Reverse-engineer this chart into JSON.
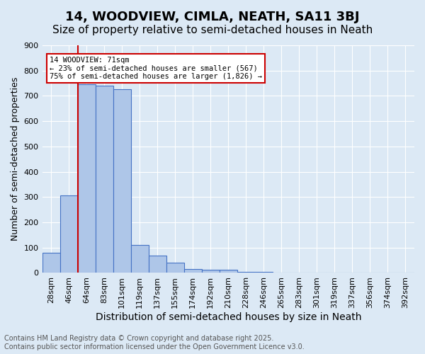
{
  "title": "14, WOODVIEW, CIMLA, NEATH, SA11 3BJ",
  "subtitle": "Size of property relative to semi-detached houses in Neath",
  "xlabel": "Distribution of semi-detached houses by size in Neath",
  "ylabel": "Number of semi-detached properties",
  "bin_labels": [
    "28sqm",
    "46sqm",
    "64sqm",
    "83sqm",
    "101sqm",
    "119sqm",
    "137sqm",
    "155sqm",
    "174sqm",
    "192sqm",
    "210sqm",
    "228sqm",
    "246sqm",
    "265sqm",
    "283sqm",
    "301sqm",
    "319sqm",
    "337sqm",
    "356sqm",
    "374sqm",
    "392sqm"
  ],
  "bar_heights": [
    80,
    307,
    745,
    740,
    727,
    110,
    68,
    40,
    15,
    13,
    13,
    5,
    3,
    0,
    0,
    0,
    0,
    0,
    0,
    0,
    0
  ],
  "bar_color": "#aec6e8",
  "bar_edge_color": "#4472c4",
  "property_line_label": "14 WOODVIEW: 71sqm",
  "annotation_line1": "← 23% of semi-detached houses are smaller (567)",
  "annotation_line2": "75% of semi-detached houses are larger (1,826) →",
  "legend_box_color": "#cc0000",
  "vline_color": "#cc0000",
  "background_color": "#dce9f5",
  "plot_bg_color": "#dce9f5",
  "footer_line1": "Contains HM Land Registry data © Crown copyright and database right 2025.",
  "footer_line2": "Contains public sector information licensed under the Open Government Licence v3.0.",
  "ylim": [
    0,
    900
  ],
  "yticks": [
    0,
    100,
    200,
    300,
    400,
    500,
    600,
    700,
    800,
    900
  ],
  "title_fontsize": 13,
  "subtitle_fontsize": 11,
  "xlabel_fontsize": 10,
  "ylabel_fontsize": 9,
  "tick_fontsize": 8,
  "footer_fontsize": 7
}
